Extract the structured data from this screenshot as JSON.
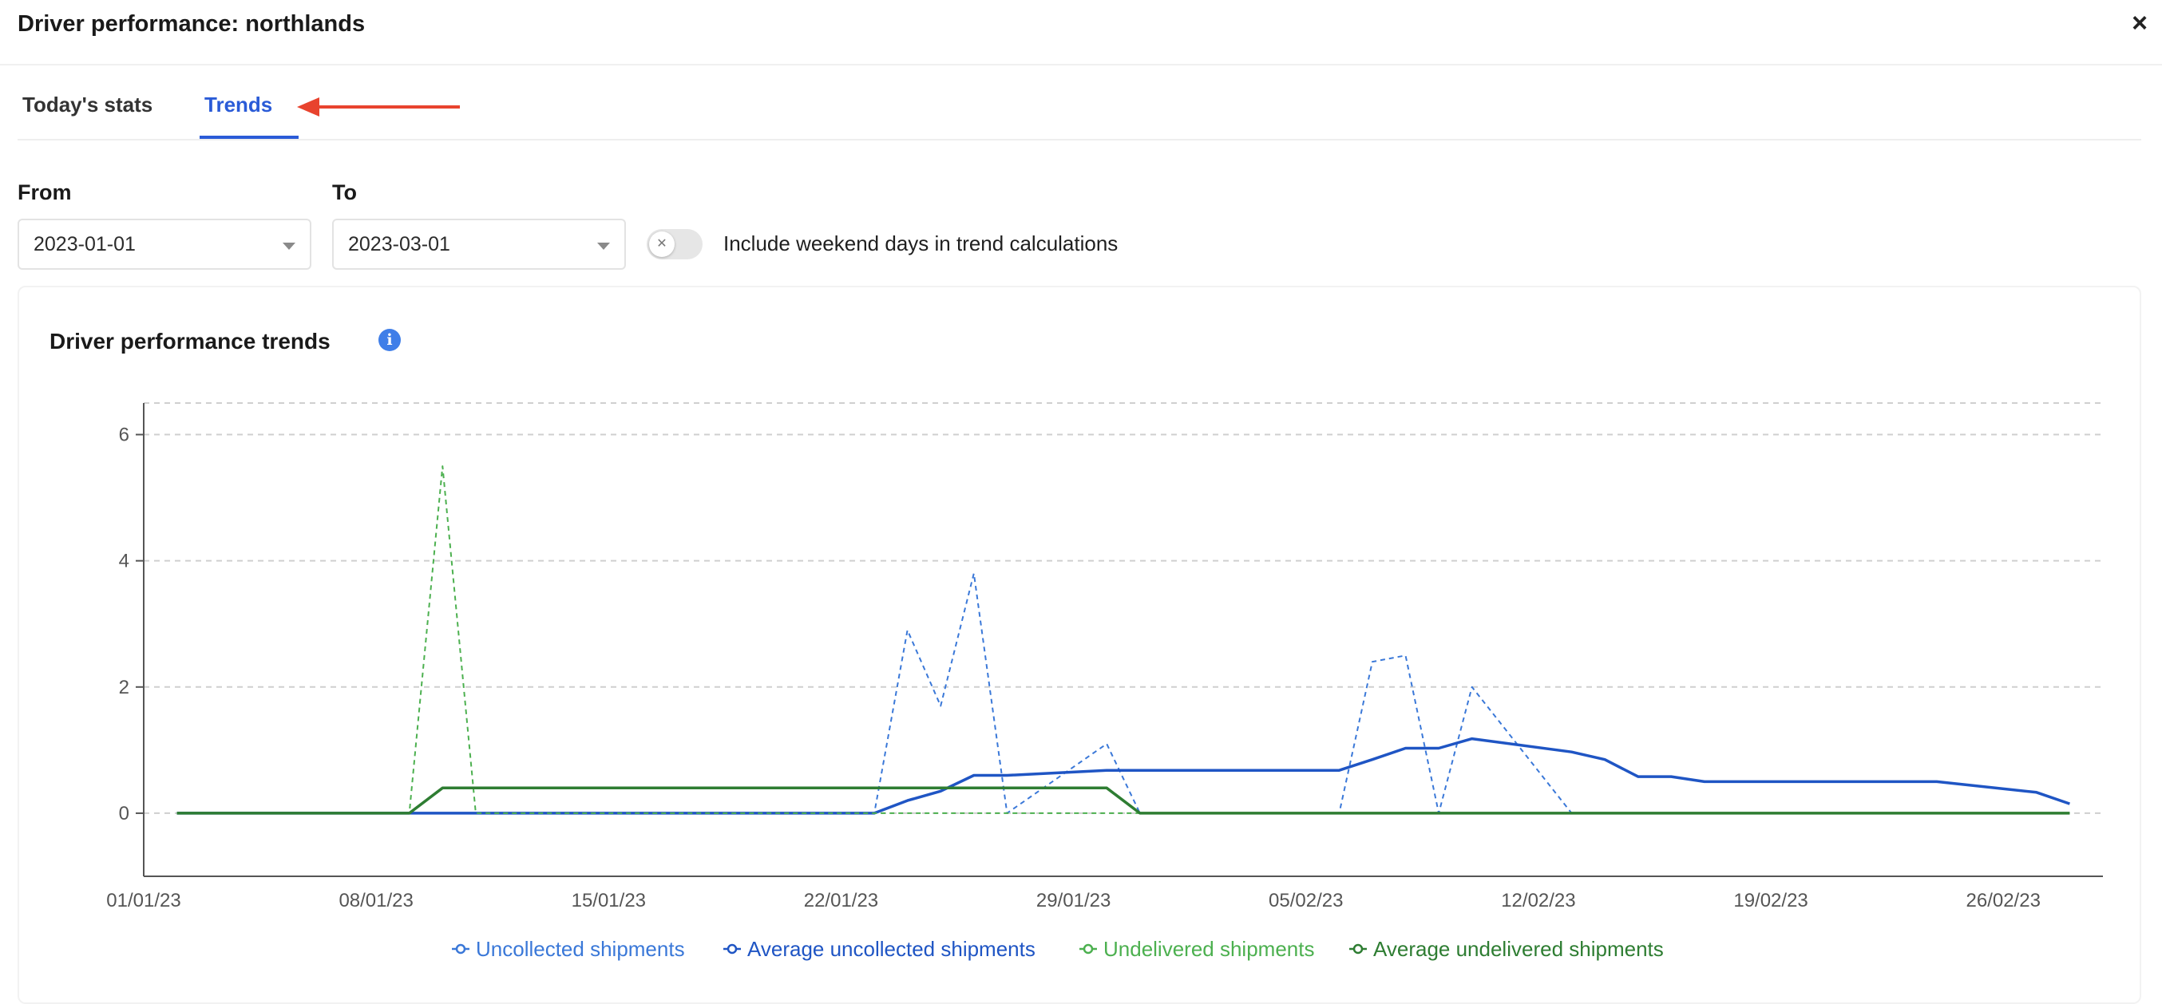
{
  "dialog": {
    "title": "Driver performance: northlands",
    "close_icon": "×"
  },
  "tabs": [
    {
      "label": "Today's stats",
      "active": false
    },
    {
      "label": "Trends",
      "active": true
    }
  ],
  "filters": {
    "from_label": "From",
    "from_value": "2023-01-01",
    "to_label": "To",
    "to_value": "2023-03-01",
    "weekend_toggle_label": "Include weekend days in trend calculations",
    "weekend_toggle_on": false
  },
  "card": {
    "title": "Driver performance trends",
    "info_icon": "i"
  },
  "colors": {
    "accent": "#2a5bd7",
    "uncollected": "#3a78d8",
    "avg_uncollected": "#1f55c4",
    "undelivered": "#4cb04f",
    "avg_undelivered": "#2e7d32",
    "annotation_arrow": "#e8432e"
  },
  "chart_data": {
    "type": "line",
    "title": "",
    "xlabel": "",
    "ylabel": "",
    "x_domain": [
      "2023-01-01",
      "2023-03-01"
    ],
    "ylim": [
      -1,
      6.5
    ],
    "y_ticks": [
      0,
      2,
      4,
      6
    ],
    "x_ticks": [
      "01/01/23",
      "08/01/23",
      "15/01/23",
      "22/01/23",
      "29/01/23",
      "05/02/23",
      "12/02/23",
      "19/02/23",
      "26/02/23"
    ],
    "x_tick_dates": [
      "2023-01-01",
      "2023-01-08",
      "2023-01-15",
      "2023-01-22",
      "2023-01-29",
      "2023-02-05",
      "2023-02-12",
      "2023-02-19",
      "2023-02-26"
    ],
    "grid": true,
    "legend_position": "bottom",
    "series": [
      {
        "name": "Uncollected shipments",
        "style": "dashed",
        "points": [
          [
            "2023-01-02",
            0
          ],
          [
            "2023-01-23",
            0
          ],
          [
            "2023-01-24",
            2.9
          ],
          [
            "2023-01-25",
            1.7
          ],
          [
            "2023-01-26",
            3.8
          ],
          [
            "2023-01-27",
            0
          ],
          [
            "2023-01-30",
            1.1
          ],
          [
            "2023-01-31",
            0
          ],
          [
            "2023-02-06",
            0
          ],
          [
            "2023-02-07",
            2.4
          ],
          [
            "2023-02-08",
            2.5
          ],
          [
            "2023-02-09",
            0
          ],
          [
            "2023-02-10",
            2.0
          ],
          [
            "2023-02-13",
            0
          ],
          [
            "2023-02-28",
            0
          ]
        ]
      },
      {
        "name": "Average uncollected shipments",
        "style": "solid",
        "points": [
          [
            "2023-01-02",
            0
          ],
          [
            "2023-01-23",
            0
          ],
          [
            "2023-01-24",
            0.2
          ],
          [
            "2023-01-25",
            0.35
          ],
          [
            "2023-01-26",
            0.6
          ],
          [
            "2023-01-27",
            0.6
          ],
          [
            "2023-01-30",
            0.68
          ],
          [
            "2023-01-31",
            0.68
          ],
          [
            "2023-02-06",
            0.68
          ],
          [
            "2023-02-07",
            0.85
          ],
          [
            "2023-02-08",
            1.03
          ],
          [
            "2023-02-09",
            1.03
          ],
          [
            "2023-02-10",
            1.18
          ],
          [
            "2023-02-13",
            0.97
          ],
          [
            "2023-02-14",
            0.85
          ],
          [
            "2023-02-15",
            0.58
          ],
          [
            "2023-02-16",
            0.58
          ],
          [
            "2023-02-17",
            0.5
          ],
          [
            "2023-02-24",
            0.5
          ],
          [
            "2023-02-27",
            0.33
          ],
          [
            "2023-02-28",
            0.15
          ]
        ]
      },
      {
        "name": "Undelivered shipments",
        "style": "dashed",
        "points": [
          [
            "2023-01-02",
            0
          ],
          [
            "2023-01-09",
            0
          ],
          [
            "2023-01-10",
            5.5
          ],
          [
            "2023-01-11",
            0
          ],
          [
            "2023-02-28",
            0
          ]
        ]
      },
      {
        "name": "Average undelivered shipments",
        "style": "solid",
        "points": [
          [
            "2023-01-02",
            0
          ],
          [
            "2023-01-09",
            0
          ],
          [
            "2023-01-10",
            0.4
          ],
          [
            "2023-01-30",
            0.4
          ],
          [
            "2023-01-31",
            0
          ],
          [
            "2023-02-28",
            0
          ]
        ]
      }
    ]
  }
}
